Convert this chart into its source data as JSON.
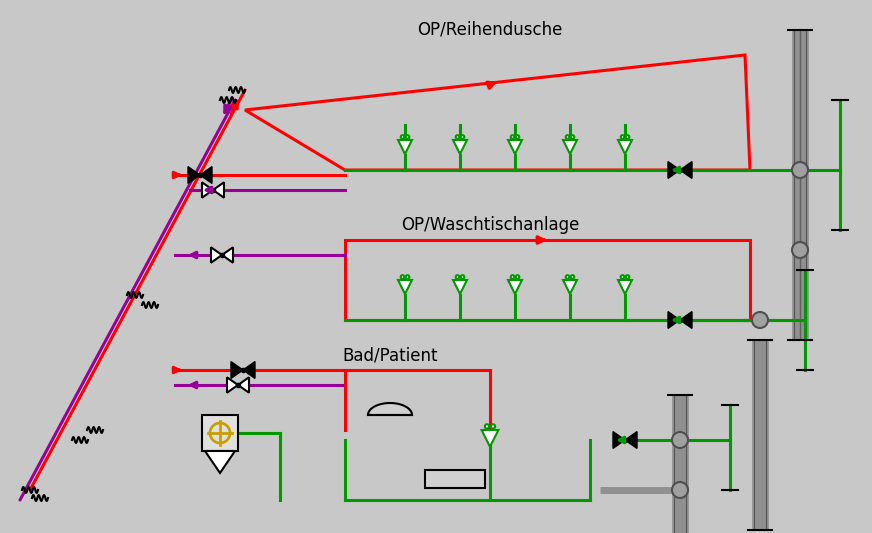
{
  "bg_color": "#c8c8c8",
  "red": "#ff0000",
  "purple": "#990099",
  "green": "#009900",
  "dark_green": "#006600",
  "gray_pipe": "#888888",
  "black": "#000000",
  "white": "#ffffff",
  "title1": "OP/Reihendusche",
  "title2": "OP/Waschtischanlage",
  "title3": "Bad/Patient",
  "figsize": [
    8.72,
    5.33
  ],
  "dpi": 100
}
